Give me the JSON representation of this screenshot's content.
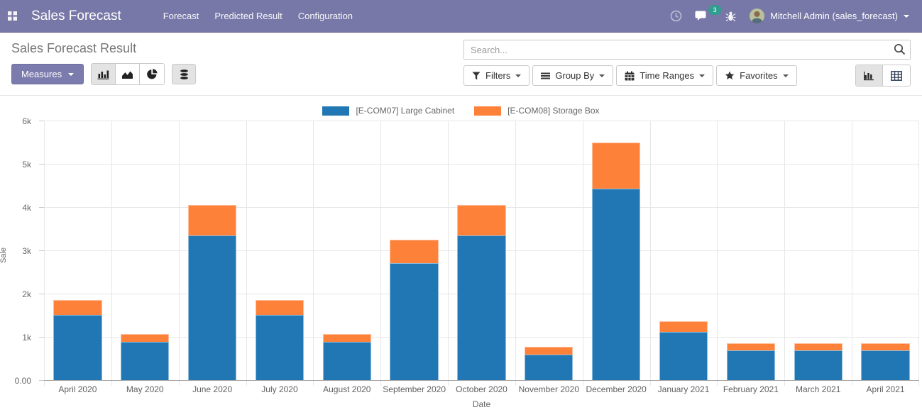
{
  "header": {
    "app_title": "Sales Forecast",
    "menu_items": [
      {
        "label": "Forecast"
      },
      {
        "label": "Predicted Result"
      },
      {
        "label": "Configuration"
      }
    ],
    "messages_badge": "3",
    "user_name": "Mitchell Admin (sales_forecast)",
    "colors": {
      "navbar_bg": "#7878a8",
      "badge_bg": "#2f9e8f"
    }
  },
  "control_panel": {
    "breadcrumb": "Sales Forecast Result",
    "measures_label": "Measures",
    "search_placeholder": "Search...",
    "filter_buttons": [
      {
        "label": "Filters"
      },
      {
        "label": "Group By"
      },
      {
        "label": "Time Ranges"
      },
      {
        "label": "Favorites"
      }
    ]
  },
  "chart_data": {
    "type": "bar",
    "stacked": true,
    "title": "",
    "xlabel": "Date",
    "ylabel": "Sale",
    "ylim": [
      0,
      6000
    ],
    "ytick_step": 1000,
    "ytick_labels": [
      "0.00",
      "1k",
      "2k",
      "3k",
      "4k",
      "5k",
      "6k"
    ],
    "grid": true,
    "legend_position": "top",
    "categories": [
      "April 2020",
      "May 2020",
      "June 2020",
      "July 2020",
      "August 2020",
      "September 2020",
      "October 2020",
      "November 2020",
      "December 2020",
      "January 2021",
      "February 2021",
      "March 2021",
      "April 2021"
    ],
    "series": [
      {
        "name": "[E-COM07] Large Cabinet",
        "color": "#2077b4",
        "values": [
          1530,
          900,
          3360,
          1530,
          900,
          2730,
          3360,
          610,
          4450,
          1130,
          700,
          700,
          700
        ]
      },
      {
        "name": "[E-COM08] Storage Box",
        "color": "#fd8138",
        "values": [
          340,
          180,
          700,
          340,
          180,
          540,
          700,
          170,
          1060,
          250,
          170,
          170,
          170
        ]
      }
    ]
  }
}
